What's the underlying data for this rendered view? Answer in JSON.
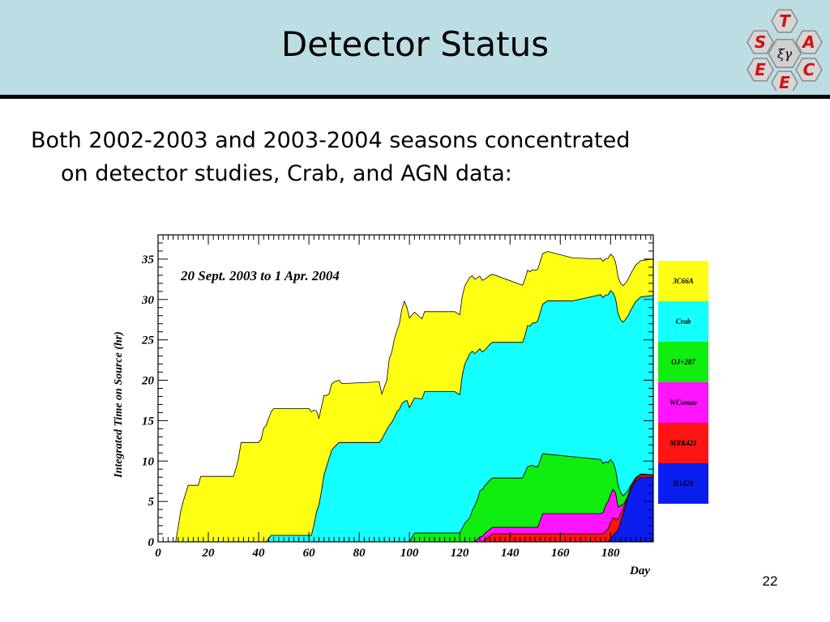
{
  "slide": {
    "title": "Detector Status",
    "bullet_line1": "Both 2002-2003 and 2003-2004 seasons concentrated",
    "bullet_line2": "on detector studies, Crab, and AGN data:",
    "page_number": "22"
  },
  "logo": {
    "letters": [
      "T",
      "S",
      "A",
      "E",
      "C",
      "E"
    ],
    "center_symbol": "ξγ"
  },
  "chart_data": {
    "type": "area",
    "stacked": true,
    "annotation": "20 Sept. 2003 to 1 Apr. 2004",
    "xlabel": "Day",
    "ylabel": "Integrated Time on Source (hr)",
    "xlim": [
      0,
      197
    ],
    "ylim": [
      0,
      38
    ],
    "xticks": [
      0,
      20,
      40,
      60,
      80,
      100,
      120,
      140,
      160,
      180
    ],
    "yticks": [
      0,
      5,
      10,
      15,
      20,
      25,
      30,
      35
    ],
    "legend_placement": "right",
    "series": [
      {
        "name": "H1426",
        "color": "#0a1ef0",
        "x": [
          0,
          179,
          181,
          183,
          184,
          185,
          186,
          187,
          188,
          190,
          192,
          197
        ],
        "y": [
          0,
          0,
          0.8,
          1.5,
          2.5,
          3.5,
          4.5,
          5.5,
          6.5,
          7.5,
          8,
          8
        ]
      },
      {
        "name": "MRK421",
        "color": "#ff1414",
        "x": [
          0,
          129,
          131,
          133,
          177,
          178,
          179,
          180,
          181,
          182,
          183,
          184,
          185,
          186,
          187,
          197
        ],
        "y": [
          0,
          0,
          0.5,
          1,
          1,
          1.3,
          1.6,
          2,
          2.2,
          1.7,
          1.3,
          1,
          0.6,
          0.4,
          0.3,
          0.3
        ]
      },
      {
        "name": "WComae",
        "color": "#ff14ff",
        "x": [
          0,
          126,
          128,
          130,
          133,
          151,
          153,
          176,
          177,
          178,
          179,
          180,
          181,
          182,
          183,
          184,
          185,
          186,
          187,
          197
        ],
        "y": [
          0,
          0,
          0.6,
          0.8,
          0.8,
          0.8,
          2.5,
          2.5,
          2.6,
          3.2,
          3.4,
          3.5,
          3.5,
          3.2,
          1.5,
          1,
          0.5,
          0.2,
          0,
          0
        ]
      },
      {
        "name": "OJ+287",
        "color": "#10ee10",
        "x": [
          0,
          100,
          102,
          120,
          122,
          124,
          125,
          126,
          127,
          128,
          132,
          145,
          146,
          147,
          148,
          149,
          150,
          176,
          177,
          178,
          179,
          180,
          181,
          182,
          183,
          184,
          185,
          186,
          187,
          188,
          197
        ],
        "y": [
          0,
          0,
          1.1,
          1.1,
          2.3,
          3,
          3.9,
          4.5,
          4.9,
          5.7,
          6.1,
          6.1,
          6.8,
          7.5,
          7.6,
          7.7,
          7.5,
          6.7,
          6.1,
          5.4,
          4.8,
          4.3,
          3.3,
          2.9,
          2.7,
          1.6,
          1.1,
          0.9,
          0.6,
          0.2,
          0
        ]
      },
      {
        "name": "Crab",
        "color": "#14ffff",
        "x": [
          0,
          43,
          45,
          61,
          62,
          63,
          64,
          65,
          66,
          67,
          68,
          69,
          70,
          72,
          73,
          74,
          88,
          89,
          91,
          92,
          93,
          94,
          95,
          96,
          97,
          98,
          99,
          100,
          101,
          102,
          105,
          106,
          107,
          118,
          120,
          121,
          122,
          124,
          125,
          126,
          127,
          128,
          129,
          130,
          145,
          146,
          147,
          148,
          149,
          150,
          155,
          165,
          175,
          185,
          197
        ],
        "y": [
          0,
          0,
          0.8,
          0.8,
          2.1,
          3.7,
          4.6,
          6.3,
          8.3,
          9.3,
          10.3,
          11.3,
          11.7,
          12.3,
          12.3,
          12.3,
          12.3,
          12.7,
          13.9,
          14.4,
          14.8,
          15.4,
          16.1,
          16.4,
          17.1,
          17.4,
          17.5,
          16.6,
          16.7,
          16.7,
          16.6,
          17.5,
          17.5,
          17.5,
          17.1,
          18.9,
          19.7,
          20.3,
          19.7,
          18.8,
          18.4,
          17.6,
          17.0,
          16.8,
          16.8,
          17.0,
          17.5,
          17.3,
          17.6,
          17.8,
          19.0,
          19.3,
          20.3,
          21.5,
          22.2
        ]
      },
      {
        "name": "3C66A",
        "color": "#ffff14",
        "x": [
          0,
          7,
          8,
          9,
          10,
          11,
          12,
          16,
          17,
          30,
          31,
          32,
          33,
          34,
          40,
          41,
          42,
          43,
          44,
          45,
          46,
          60,
          61,
          62,
          63,
          64,
          65,
          66,
          67,
          68,
          69,
          70,
          72,
          73,
          74,
          88,
          89,
          91,
          92,
          93,
          94,
          95,
          96,
          97,
          98,
          99,
          100,
          105,
          120,
          150,
          175,
          176,
          185,
          197
        ],
        "y": [
          0,
          0,
          1.8,
          3.8,
          5,
          6,
          7,
          7,
          8.1,
          8.1,
          9.1,
          10.3,
          12.3,
          12.3,
          12.3,
          12.7,
          14.1,
          14.4,
          14.9,
          15.3,
          15.7,
          15.7,
          15.3,
          14.2,
          12.5,
          10.7,
          10.4,
          9.8,
          8.8,
          8.0,
          8.2,
          8.1,
          7.7,
          7.3,
          7.3,
          7.5,
          5.6,
          6.1,
          8.3,
          8.7,
          9.7,
          10.0,
          10.6,
          11.7,
          12.4,
          11.5,
          11.1,
          9.9,
          9.9,
          6.5,
          4.5,
          4.5,
          4.5,
          4.5
        ]
      }
    ]
  }
}
